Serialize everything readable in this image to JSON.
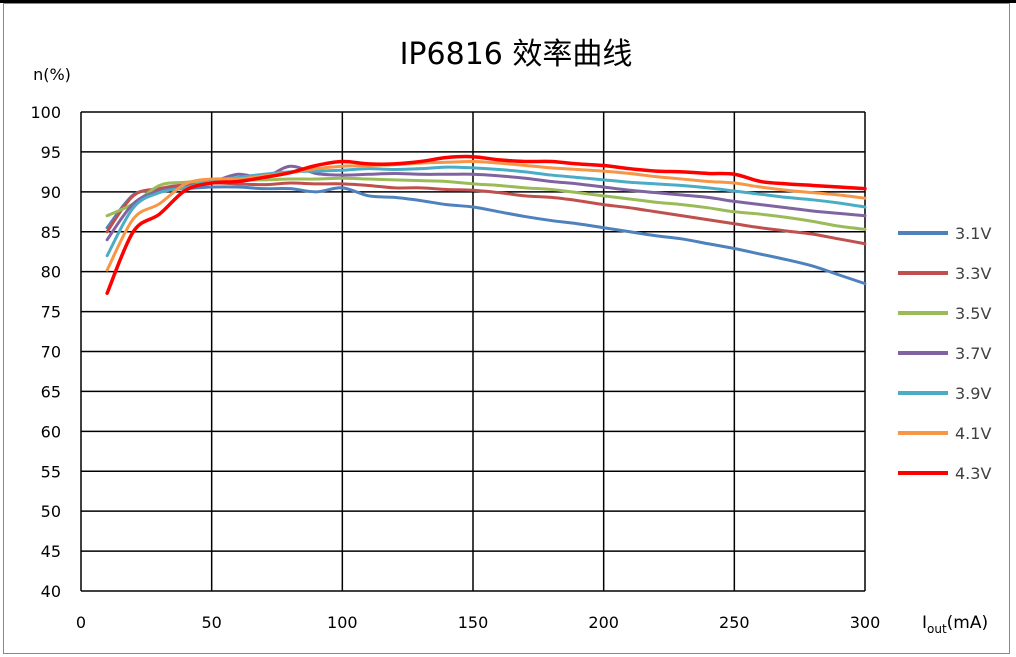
{
  "chart_data": {
    "type": "line",
    "title": "IP6816 效率曲线",
    "ylabel": "n(%)",
    "xlabel": {
      "main": "I",
      "sub": "out",
      "unit": "(mA)"
    },
    "xlim": [
      0,
      300
    ],
    "ylim": [
      40,
      100
    ],
    "xticks": [
      0,
      50,
      100,
      150,
      200,
      250,
      300
    ],
    "yticks": [
      40,
      45,
      50,
      55,
      60,
      65,
      70,
      75,
      80,
      85,
      90,
      95,
      100
    ],
    "grid": true,
    "legend_position": "right",
    "series": [
      {
        "name": "3.1V",
        "color": "#4f81bd",
        "x": [
          10,
          20,
          30,
          40,
          50,
          60,
          70,
          80,
          90,
          100,
          110,
          120,
          130,
          140,
          150,
          160,
          170,
          180,
          190,
          200,
          210,
          220,
          230,
          240,
          250,
          260,
          270,
          280,
          290,
          300
        ],
        "y": [
          85.5,
          89.6,
          90.2,
          90.4,
          90.6,
          90.6,
          90.4,
          90.4,
          90.0,
          90.5,
          89.5,
          89.3,
          88.9,
          88.4,
          88.1,
          87.5,
          86.9,
          86.4,
          86.0,
          85.5,
          85.0,
          84.5,
          84.1,
          83.5,
          82.9,
          82.2,
          81.5,
          80.7,
          79.6,
          78.5
        ]
      },
      {
        "name": "3.3V",
        "color": "#c0504d",
        "x": [
          10,
          20,
          30,
          40,
          50,
          60,
          70,
          80,
          90,
          100,
          110,
          120,
          130,
          140,
          150,
          160,
          170,
          180,
          190,
          200,
          210,
          220,
          230,
          240,
          250,
          260,
          270,
          280,
          290,
          300
        ],
        "y": [
          85.0,
          89.5,
          90.4,
          90.9,
          91.1,
          91.0,
          90.9,
          91.1,
          91.0,
          91.0,
          90.8,
          90.5,
          90.5,
          90.3,
          90.2,
          89.9,
          89.5,
          89.3,
          88.9,
          88.4,
          88.0,
          87.5,
          87.0,
          86.5,
          86.0,
          85.5,
          85.1,
          84.7,
          84.1,
          83.5
        ]
      },
      {
        "name": "3.5V",
        "color": "#9bbb59",
        "x": [
          10,
          20,
          30,
          40,
          50,
          60,
          70,
          80,
          90,
          100,
          110,
          120,
          130,
          140,
          150,
          160,
          170,
          180,
          190,
          200,
          210,
          220,
          230,
          240,
          250,
          260,
          270,
          280,
          290,
          300
        ],
        "y": [
          87.0,
          88.5,
          90.8,
          91.2,
          91.4,
          91.5,
          91.5,
          91.6,
          91.6,
          91.7,
          91.6,
          91.5,
          91.4,
          91.3,
          91.0,
          90.8,
          90.5,
          90.3,
          89.9,
          89.5,
          89.1,
          88.7,
          88.4,
          88.0,
          87.5,
          87.2,
          86.8,
          86.3,
          85.7,
          85.3
        ]
      },
      {
        "name": "3.7V",
        "color": "#8064a2",
        "x": [
          10,
          20,
          30,
          40,
          50,
          60,
          70,
          80,
          90,
          100,
          110,
          120,
          130,
          140,
          150,
          160,
          170,
          180,
          190,
          200,
          210,
          220,
          230,
          240,
          250,
          260,
          270,
          280,
          290,
          300
        ],
        "y": [
          84.0,
          88.5,
          90.1,
          90.6,
          91.2,
          92.2,
          91.8,
          93.2,
          92.3,
          92.1,
          92.2,
          92.3,
          92.2,
          92.2,
          92.2,
          92.0,
          91.7,
          91.3,
          91.0,
          90.6,
          90.2,
          89.9,
          89.6,
          89.3,
          88.8,
          88.4,
          88.0,
          87.6,
          87.3,
          87.0
        ]
      },
      {
        "name": "3.9V",
        "color": "#4bacc6",
        "x": [
          10,
          20,
          30,
          40,
          50,
          60,
          70,
          80,
          90,
          100,
          110,
          120,
          130,
          140,
          150,
          160,
          170,
          180,
          190,
          200,
          210,
          220,
          230,
          240,
          250,
          260,
          270,
          280,
          290,
          300
        ],
        "y": [
          82.0,
          88.0,
          89.9,
          90.5,
          91.4,
          91.8,
          92.2,
          92.5,
          92.6,
          92.7,
          92.9,
          92.8,
          92.9,
          93.1,
          93.0,
          92.8,
          92.5,
          92.1,
          91.8,
          91.5,
          91.2,
          91.0,
          90.8,
          90.5,
          90.1,
          89.7,
          89.3,
          89.0,
          88.6,
          88.1
        ]
      },
      {
        "name": "4.1V",
        "color": "#f79646",
        "x": [
          10,
          20,
          30,
          40,
          50,
          60,
          70,
          80,
          90,
          100,
          110,
          120,
          130,
          140,
          150,
          160,
          170,
          180,
          190,
          200,
          210,
          220,
          230,
          240,
          250,
          260,
          270,
          280,
          290,
          300
        ],
        "y": [
          80.2,
          86.6,
          88.5,
          91.0,
          91.6,
          91.6,
          92.0,
          92.4,
          92.9,
          93.2,
          93.3,
          93.4,
          93.6,
          93.7,
          93.8,
          93.6,
          93.3,
          93.0,
          92.8,
          92.6,
          92.3,
          91.9,
          91.6,
          91.3,
          91.1,
          90.6,
          90.2,
          89.9,
          89.6,
          89.2
        ]
      },
      {
        "name": "4.3V",
        "color": "#ff0000",
        "x": [
          10,
          20,
          30,
          40,
          50,
          60,
          70,
          80,
          90,
          100,
          110,
          120,
          130,
          140,
          150,
          160,
          170,
          180,
          190,
          200,
          210,
          220,
          230,
          240,
          250,
          260,
          270,
          280,
          290,
          300
        ],
        "y": [
          77.3,
          85.0,
          87.2,
          90.2,
          91.1,
          91.3,
          91.8,
          92.4,
          93.3,
          93.8,
          93.5,
          93.5,
          93.8,
          94.3,
          94.4,
          94.0,
          93.8,
          93.8,
          93.5,
          93.3,
          92.9,
          92.6,
          92.5,
          92.3,
          92.2,
          91.3,
          91.0,
          90.8,
          90.6,
          90.4
        ]
      }
    ]
  }
}
